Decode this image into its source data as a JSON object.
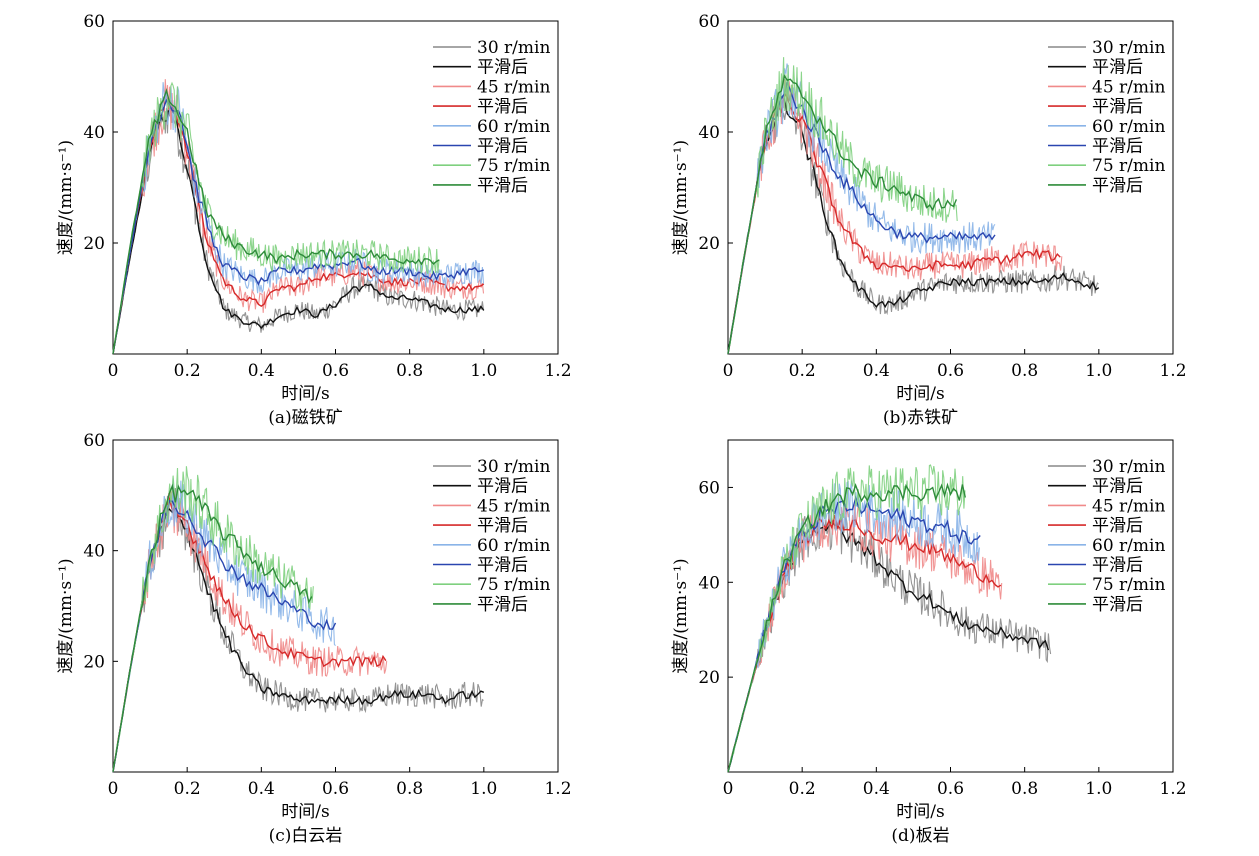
{
  "figure": {
    "x_axis_label": "时间/s",
    "y_axis_label": "速度/(mm·s⁻¹)"
  },
  "colors": {
    "30_raw": "#888888",
    "30_smooth": "#111111",
    "45_raw": "#f08a8a",
    "45_smooth": "#d62a2a",
    "60_raw": "#8ab4e8",
    "60_smooth": "#2a46b0",
    "75_raw": "#7fd07f",
    "75_smooth": "#2e8b3a"
  },
  "legend_labels": [
    "30 r/min",
    "平滑后",
    "45 r/min",
    "平滑后",
    "60 r/min",
    "平滑后",
    "75 r/min",
    "平滑后"
  ],
  "chart_data": [
    {
      "type": "line",
      "title": "(a)磁铁矿",
      "xlabel": "时间/s",
      "ylabel": "速度/(mm·s⁻¹)",
      "xlim": [
        0,
        1.2
      ],
      "ylim": [
        0,
        60
      ],
      "x_ticks": [
        "0",
        "0.2",
        "0.4",
        "0.6",
        "0.8",
        "1.0",
        "1.2"
      ],
      "y_ticks": [
        "20",
        "40",
        "60"
      ],
      "series": [
        {
          "name": "30 r/min",
          "key": "30",
          "x": [
            0,
            0.05,
            0.1,
            0.13,
            0.16,
            0.2,
            0.25,
            0.3,
            0.35,
            0.4,
            0.45,
            0.5,
            0.55,
            0.6,
            0.65,
            0.7,
            0.75,
            0.8,
            0.85,
            0.9,
            0.95,
            1.0
          ],
          "y": [
            0,
            19,
            36,
            43,
            44,
            34,
            17,
            8,
            6,
            5,
            7,
            8,
            7,
            9,
            12,
            12,
            10,
            10,
            9,
            8,
            8,
            8
          ]
        },
        {
          "name": "45 r/min",
          "key": "45",
          "x": [
            0,
            0.05,
            0.1,
            0.14,
            0.17,
            0.2,
            0.25,
            0.3,
            0.35,
            0.4,
            0.45,
            0.5,
            0.55,
            0.6,
            0.65,
            0.7,
            0.75,
            0.8,
            0.85,
            0.9,
            0.95,
            1.0
          ],
          "y": [
            0,
            20,
            38,
            45,
            44,
            37,
            21,
            13,
            10,
            9,
            12,
            12,
            14,
            14,
            15,
            14,
            13,
            13,
            13,
            12,
            12,
            12
          ]
        },
        {
          "name": "60 r/min",
          "key": "60",
          "x": [
            0,
            0.05,
            0.1,
            0.14,
            0.18,
            0.22,
            0.27,
            0.3,
            0.35,
            0.4,
            0.45,
            0.5,
            0.55,
            0.6,
            0.65,
            0.7,
            0.75,
            0.8,
            0.85,
            0.9,
            0.95,
            1.0
          ],
          "y": [
            0,
            20,
            38,
            46,
            44,
            31,
            20,
            16,
            14,
            13,
            15,
            15,
            16,
            16,
            17,
            15,
            15,
            15,
            14,
            14,
            15,
            15
          ]
        },
        {
          "name": "75 r/min",
          "key": "75",
          "x": [
            0,
            0.05,
            0.1,
            0.15,
            0.2,
            0.25,
            0.3,
            0.35,
            0.4,
            0.45,
            0.5,
            0.55,
            0.6,
            0.65,
            0.7,
            0.75,
            0.8,
            0.85,
            0.88
          ],
          "y": [
            0,
            21,
            39,
            47,
            40,
            26,
            21,
            19,
            18,
            17,
            18,
            18,
            18,
            18,
            18,
            17,
            17,
            17,
            17
          ]
        }
      ]
    },
    {
      "type": "line",
      "title": "(b)赤铁矿",
      "xlabel": "时间/s",
      "ylabel": "速度/(mm·s⁻¹)",
      "xlim": [
        0,
        1.2
      ],
      "ylim": [
        0,
        60
      ],
      "x_ticks": [
        "0",
        "0.2",
        "0.4",
        "0.6",
        "0.8",
        "1.0",
        "1.2"
      ],
      "y_ticks": [
        "20",
        "40",
        "60"
      ],
      "series": [
        {
          "name": "30 r/min",
          "key": "30",
          "x": [
            0,
            0.05,
            0.1,
            0.15,
            0.2,
            0.25,
            0.3,
            0.35,
            0.4,
            0.45,
            0.5,
            0.55,
            0.6,
            0.65,
            0.7,
            0.75,
            0.8,
            0.85,
            0.9,
            0.95,
            1.0
          ],
          "y": [
            0,
            20,
            38,
            46,
            40,
            28,
            17,
            12,
            9,
            9,
            11,
            12,
            13,
            13,
            13,
            13,
            13,
            13,
            14,
            13,
            12
          ]
        },
        {
          "name": "45 r/min",
          "key": "45",
          "x": [
            0,
            0.05,
            0.1,
            0.15,
            0.2,
            0.25,
            0.3,
            0.35,
            0.4,
            0.45,
            0.5,
            0.55,
            0.6,
            0.65,
            0.7,
            0.75,
            0.8,
            0.85,
            0.9
          ],
          "y": [
            0,
            20,
            38,
            46,
            42,
            33,
            24,
            19,
            16,
            16,
            15,
            16,
            16,
            16,
            17,
            17,
            18,
            18,
            17
          ]
        },
        {
          "name": "60 r/min",
          "key": "60",
          "x": [
            0,
            0.05,
            0.1,
            0.16,
            0.2,
            0.25,
            0.3,
            0.35,
            0.4,
            0.45,
            0.5,
            0.55,
            0.6,
            0.65,
            0.7,
            0.72
          ],
          "y": [
            0,
            20,
            39,
            48,
            44,
            38,
            32,
            28,
            24,
            22,
            21,
            21,
            21,
            21,
            21,
            21
          ]
        },
        {
          "name": "75 r/min",
          "key": "75",
          "x": [
            0,
            0.05,
            0.1,
            0.15,
            0.2,
            0.25,
            0.3,
            0.35,
            0.4,
            0.45,
            0.5,
            0.55,
            0.6,
            0.62
          ],
          "y": [
            0,
            20,
            39,
            49,
            47,
            42,
            37,
            33,
            31,
            30,
            28,
            27,
            27,
            27
          ]
        }
      ]
    },
    {
      "type": "line",
      "title": "(c)白云岩",
      "xlabel": "时间/s",
      "ylabel": "速度/(mm·s⁻¹)",
      "xlim": [
        0,
        1.2
      ],
      "ylim": [
        0,
        60
      ],
      "x_ticks": [
        "0",
        "0.2",
        "0.4",
        "0.6",
        "0.8",
        "1.0",
        "1.2"
      ],
      "y_ticks": [
        "20",
        "40",
        "60"
      ],
      "series": [
        {
          "name": "30 r/min",
          "key": "30",
          "x": [
            0,
            0.05,
            0.1,
            0.15,
            0.18,
            0.22,
            0.26,
            0.3,
            0.35,
            0.4,
            0.45,
            0.5,
            0.55,
            0.6,
            0.65,
            0.7,
            0.75,
            0.8,
            0.85,
            0.9,
            0.95,
            1.0
          ],
          "y": [
            0,
            20,
            38,
            47,
            47,
            40,
            32,
            25,
            19,
            15,
            14,
            13,
            13,
            13,
            13,
            13,
            14,
            14,
            14,
            13,
            14,
            14
          ]
        },
        {
          "name": "45 r/min",
          "key": "45",
          "x": [
            0,
            0.05,
            0.1,
            0.15,
            0.2,
            0.25,
            0.3,
            0.35,
            0.4,
            0.45,
            0.5,
            0.55,
            0.6,
            0.65,
            0.7,
            0.74
          ],
          "y": [
            0,
            20,
            38,
            48,
            45,
            38,
            31,
            27,
            24,
            22,
            21,
            20,
            20,
            20,
            20,
            20
          ]
        },
        {
          "name": "60 r/min",
          "key": "60",
          "x": [
            0,
            0.05,
            0.1,
            0.15,
            0.2,
            0.25,
            0.3,
            0.35,
            0.4,
            0.45,
            0.5,
            0.55,
            0.6
          ],
          "y": [
            0,
            20,
            38,
            49,
            47,
            42,
            38,
            35,
            33,
            31,
            29,
            27,
            26
          ]
        },
        {
          "name": "75 r/min",
          "key": "75",
          "x": [
            0,
            0.05,
            0.1,
            0.15,
            0.2,
            0.25,
            0.3,
            0.35,
            0.4,
            0.45,
            0.5,
            0.54
          ],
          "y": [
            0,
            20,
            39,
            50,
            51,
            47,
            43,
            40,
            37,
            35,
            33,
            31
          ]
        }
      ]
    },
    {
      "type": "line",
      "title": "(d)板岩",
      "xlabel": "时间/s",
      "ylabel": "速度/(mm·s⁻¹)",
      "xlim": [
        0,
        1.2
      ],
      "ylim": [
        0,
        70
      ],
      "x_ticks": [
        "0",
        "0.2",
        "0.4",
        "0.6",
        "0.8",
        "1.0",
        "1.2"
      ],
      "y_ticks": [
        "20",
        "40",
        "60"
      ],
      "series": [
        {
          "name": "30 r/min",
          "key": "30",
          "x": [
            0,
            0.05,
            0.1,
            0.15,
            0.2,
            0.25,
            0.3,
            0.35,
            0.4,
            0.45,
            0.5,
            0.55,
            0.6,
            0.65,
            0.7,
            0.75,
            0.8,
            0.85,
            0.87
          ],
          "y": [
            0,
            15,
            29,
            41,
            49,
            52,
            51,
            48,
            45,
            41,
            38,
            36,
            33,
            31,
            30,
            29,
            28,
            27,
            26
          ]
        },
        {
          "name": "45 r/min",
          "key": "45",
          "x": [
            0,
            0.05,
            0.1,
            0.15,
            0.2,
            0.25,
            0.3,
            0.35,
            0.4,
            0.45,
            0.5,
            0.55,
            0.6,
            0.65,
            0.7,
            0.74
          ],
          "y": [
            0,
            15,
            29,
            42,
            49,
            52,
            53,
            52,
            50,
            49,
            48,
            47,
            45,
            43,
            41,
            40
          ]
        },
        {
          "name": "60 r/min",
          "key": "60",
          "x": [
            0,
            0.05,
            0.1,
            0.15,
            0.2,
            0.25,
            0.3,
            0.35,
            0.4,
            0.45,
            0.5,
            0.55,
            0.6,
            0.65,
            0.68
          ],
          "y": [
            0,
            15,
            30,
            43,
            50,
            54,
            56,
            56,
            55,
            54,
            53,
            52,
            51,
            49,
            49
          ]
        },
        {
          "name": "75 r/min",
          "key": "75",
          "x": [
            0,
            0.05,
            0.1,
            0.15,
            0.2,
            0.25,
            0.3,
            0.35,
            0.4,
            0.45,
            0.5,
            0.55,
            0.6,
            0.64
          ],
          "y": [
            0,
            15,
            30,
            43,
            51,
            55,
            58,
            59,
            59,
            59,
            59,
            59,
            59,
            59
          ]
        }
      ]
    }
  ]
}
